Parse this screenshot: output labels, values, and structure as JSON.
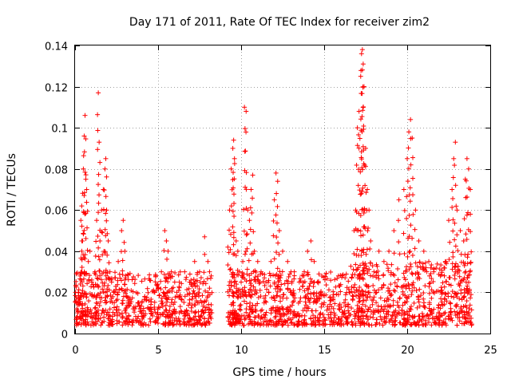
{
  "chart_data": {
    "type": "scatter",
    "title": "Day 171 of 2011, Rate Of TEC Index for receiver zim2",
    "xlabel": "GPS time / hours",
    "ylabel": "ROTI / TECUs",
    "xlim": [
      0,
      25
    ],
    "ylim": [
      0,
      0.14
    ],
    "x_ticks": [
      0,
      5,
      10,
      15,
      20,
      25
    ],
    "x_tick_labels": [
      "0",
      "5",
      "10",
      "15",
      "20",
      "25"
    ],
    "y_ticks": [
      0,
      0.02,
      0.04,
      0.06,
      0.08,
      0.1,
      0.12,
      0.14
    ],
    "y_tick_labels": [
      "0",
      "0.02",
      "0.04",
      "0.06",
      "0.08",
      "0.1",
      "0.12",
      "0.14"
    ],
    "grid": true,
    "marker": "+",
    "color": "#ff0000",
    "series": [
      {
        "name": "ROTI",
        "points": [
          [
            0.1,
            0.012
          ],
          [
            0.2,
            0.02
          ],
          [
            0.3,
            0.028
          ],
          [
            0.35,
            0.055
          ],
          [
            0.4,
            0.062
          ],
          [
            0.45,
            0.045
          ],
          [
            0.5,
            0.08
          ],
          [
            0.55,
            0.096
          ],
          [
            0.6,
            0.106
          ],
          [
            0.65,
            0.075
          ],
          [
            0.7,
            0.07
          ],
          [
            0.8,
            0.035
          ],
          [
            0.9,
            0.04
          ],
          [
            1.0,
            0.025
          ],
          [
            1.1,
            0.018
          ],
          [
            1.2,
            0.03
          ],
          [
            1.3,
            0.055
          ],
          [
            1.4,
            0.117
          ],
          [
            1.45,
            0.093
          ],
          [
            1.5,
            0.045
          ],
          [
            1.6,
            0.06
          ],
          [
            1.7,
            0.07
          ],
          [
            1.8,
            0.08
          ],
          [
            1.85,
            0.085
          ],
          [
            1.9,
            0.06
          ],
          [
            2.0,
            0.045
          ],
          [
            2.1,
            0.03
          ],
          [
            2.2,
            0.025
          ],
          [
            2.4,
            0.02
          ],
          [
            2.6,
            0.035
          ],
          [
            2.8,
            0.05
          ],
          [
            2.9,
            0.055
          ],
          [
            3.0,
            0.04
          ],
          [
            3.2,
            0.015
          ],
          [
            3.5,
            0.012
          ],
          [
            3.8,
            0.015
          ],
          [
            4.0,
            0.01
          ],
          [
            4.2,
            0.018
          ],
          [
            4.5,
            0.012
          ],
          [
            4.8,
            0.02
          ],
          [
            5.0,
            0.022
          ],
          [
            5.2,
            0.03
          ],
          [
            5.4,
            0.05
          ],
          [
            5.5,
            0.045
          ],
          [
            5.6,
            0.04
          ],
          [
            5.8,
            0.03
          ],
          [
            6.0,
            0.025
          ],
          [
            6.3,
            0.018
          ],
          [
            6.6,
            0.03
          ],
          [
            6.9,
            0.025
          ],
          [
            7.2,
            0.035
          ],
          [
            7.5,
            0.03
          ],
          [
            7.8,
            0.047
          ],
          [
            8.0,
            0.035
          ],
          [
            8.1,
            0.03
          ],
          [
            8.2,
            0.028
          ],
          [
            9.2,
            0.042
          ],
          [
            9.3,
            0.06
          ],
          [
            9.4,
            0.08
          ],
          [
            9.5,
            0.09
          ],
          [
            9.55,
            0.094
          ],
          [
            9.6,
            0.085
          ],
          [
            9.7,
            0.045
          ],
          [
            9.8,
            0.04
          ],
          [
            9.9,
            0.03
          ],
          [
            10.0,
            0.025
          ],
          [
            10.1,
            0.035
          ],
          [
            10.2,
            0.11
          ],
          [
            10.3,
            0.108
          ],
          [
            10.4,
            0.06
          ],
          [
            10.5,
            0.055
          ],
          [
            10.6,
            0.07
          ],
          [
            10.7,
            0.077
          ],
          [
            10.8,
            0.04
          ],
          [
            11.0,
            0.035
          ],
          [
            11.2,
            0.03
          ],
          [
            11.5,
            0.025
          ],
          [
            11.8,
            0.035
          ],
          [
            12.0,
            0.065
          ],
          [
            12.1,
            0.078
          ],
          [
            12.2,
            0.074
          ],
          [
            12.3,
            0.05
          ],
          [
            12.5,
            0.04
          ],
          [
            12.8,
            0.035
          ],
          [
            13.0,
            0.03
          ],
          [
            13.2,
            0.03
          ],
          [
            13.5,
            0.025
          ],
          [
            13.8,
            0.03
          ],
          [
            14.0,
            0.04
          ],
          [
            14.2,
            0.045
          ],
          [
            14.4,
            0.035
          ],
          [
            14.6,
            0.025
          ],
          [
            14.8,
            0.02
          ],
          [
            15.0,
            0.015
          ],
          [
            15.3,
            0.012
          ],
          [
            15.6,
            0.01
          ],
          [
            15.9,
            0.012
          ],
          [
            16.2,
            0.015
          ],
          [
            16.5,
            0.02
          ],
          [
            16.8,
            0.05
          ],
          [
            16.9,
            0.06
          ],
          [
            17.0,
            0.1
          ],
          [
            17.1,
            0.108
          ],
          [
            17.2,
            0.125
          ],
          [
            17.25,
            0.136
          ],
          [
            17.3,
            0.138
          ],
          [
            17.35,
            0.131
          ],
          [
            17.4,
            0.12
          ],
          [
            17.5,
            0.09
          ],
          [
            17.6,
            0.07
          ],
          [
            17.7,
            0.06
          ],
          [
            17.8,
            0.045
          ],
          [
            18.0,
            0.03
          ],
          [
            18.3,
            0.04
          ],
          [
            18.6,
            0.035
          ],
          [
            18.9,
            0.04
          ],
          [
            19.2,
            0.05
          ],
          [
            19.5,
            0.065
          ],
          [
            19.8,
            0.07
          ],
          [
            20.0,
            0.085
          ],
          [
            20.1,
            0.098
          ],
          [
            20.2,
            0.104
          ],
          [
            20.3,
            0.095
          ],
          [
            20.5,
            0.06
          ],
          [
            20.7,
            0.045
          ],
          [
            21.0,
            0.04
          ],
          [
            21.3,
            0.035
          ],
          [
            21.6,
            0.03
          ],
          [
            22.0,
            0.028
          ],
          [
            22.3,
            0.035
          ],
          [
            22.5,
            0.055
          ],
          [
            22.7,
            0.07
          ],
          [
            22.8,
            0.085
          ],
          [
            22.9,
            0.093
          ],
          [
            23.0,
            0.06
          ],
          [
            23.2,
            0.05
          ],
          [
            23.4,
            0.045
          ],
          [
            23.5,
            0.075
          ],
          [
            23.6,
            0.085
          ],
          [
            23.7,
            0.08
          ],
          [
            23.8,
            0.07
          ]
        ],
        "baseline_band": [
          {
            "x_start": 0.0,
            "x_end": 8.2,
            "y_low": 0.004,
            "y_high": 0.03
          },
          {
            "x_start": 9.2,
            "x_end": 16.6,
            "y_low": 0.004,
            "y_high": 0.03
          },
          {
            "x_start": 16.6,
            "x_end": 23.9,
            "y_low": 0.004,
            "y_high": 0.035
          }
        ]
      }
    ]
  }
}
